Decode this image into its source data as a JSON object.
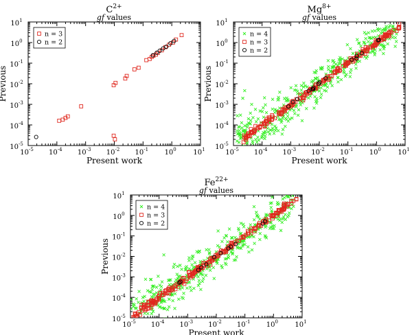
{
  "figure": {
    "description_labels": true
  },
  "chart_data": [
    {
      "type": "scatter",
      "id": "c2",
      "title_element": "C",
      "title_charge": "2+",
      "subtitle_italic": "gf",
      "subtitle_rest": " values",
      "xlabel": "Present work",
      "ylabel": "Previous",
      "xscale": "log",
      "yscale": "log",
      "xlim": [
        1e-05,
        10
      ],
      "ylim": [
        1e-05,
        10
      ],
      "xticks": [
        "10",
        "10",
        "10",
        "10",
        "10",
        "10",
        "10"
      ],
      "xtick_exps": [
        "-5",
        "-4",
        "-3",
        "-2",
        "-1",
        "0",
        "1"
      ],
      "yticks": [
        "10",
        "10",
        "10",
        "10",
        "10",
        "10",
        "10"
      ],
      "ytick_exps": [
        "-5",
        "-4",
        "-3",
        "-2",
        "-1",
        "0",
        "1"
      ],
      "legend_position": "top-left",
      "series": [
        {
          "name": "n = 3",
          "marker": "square",
          "color": "#e0281e",
          "points": [
            [
              0.00012,
              0.00016
            ],
            [
              0.00016,
              0.00018
            ],
            [
              0.0002,
              0.00022
            ],
            [
              0.00024,
              0.00026
            ],
            [
              0.0007,
              0.0008
            ],
            [
              0.0095,
              0.0085
            ],
            [
              0.011,
              0.011
            ],
            [
              0.0095,
              3e-05
            ],
            [
              0.0105,
              2e-05
            ],
            [
              0.024,
              0.018
            ],
            [
              0.027,
              0.024
            ],
            [
              0.05,
              0.05
            ],
            [
              0.07,
              0.06
            ],
            [
              0.13,
              0.14
            ],
            [
              0.17,
              0.16
            ],
            [
              0.2,
              0.2
            ],
            [
              0.23,
              0.23
            ],
            [
              0.28,
              0.26
            ],
            [
              0.33,
              0.32
            ],
            [
              0.45,
              0.42
            ],
            [
              0.6,
              0.6
            ],
            [
              0.8,
              0.78
            ],
            [
              1.1,
              1.0
            ],
            [
              1.4,
              1.4
            ],
            [
              2.2,
              2.3
            ]
          ]
        },
        {
          "name": "n = 2",
          "marker": "circle",
          "color": "#000000",
          "points": [
            [
              1.9e-05,
              2.6e-05
            ],
            [
              0.22,
              0.24
            ],
            [
              0.3,
              0.32
            ],
            [
              0.38,
              0.4
            ],
            [
              0.5,
              0.52
            ],
            [
              0.65,
              0.63
            ],
            [
              0.9,
              0.92
            ],
            [
              1.2,
              1.2
            ]
          ]
        }
      ]
    },
    {
      "type": "scatter",
      "id": "mg8",
      "title_element": "Mg",
      "title_charge": "8+",
      "subtitle_italic": "gf",
      "subtitle_rest": " values",
      "xlabel": "Present work",
      "ylabel": "Previous",
      "xscale": "log",
      "yscale": "log",
      "xlim": [
        1e-05,
        10
      ],
      "ylim": [
        1e-05,
        10
      ],
      "xticks": [
        "10",
        "10",
        "10",
        "10",
        "10",
        "10",
        "10"
      ],
      "xtick_exps": [
        "-5",
        "-4",
        "-3",
        "-2",
        "-1",
        "0",
        "1"
      ],
      "yticks": [
        "10",
        "10",
        "10",
        "10",
        "10",
        "10",
        "10"
      ],
      "ytick_exps": [
        "-5",
        "-4",
        "-3",
        "-2",
        "-1",
        "0",
        "1"
      ],
      "legend_position": "top-left",
      "series": [
        {
          "name": "n = 4",
          "marker": "x",
          "color": "#33ee22",
          "generated": {
            "count": 420,
            "range_log": [
              -5,
              0.7
            ],
            "scatter": 0.42,
            "seed": 11
          }
        },
        {
          "name": "n = 3",
          "marker": "square",
          "color": "#e0281e",
          "generated": {
            "count": 230,
            "range_log": [
              -4.7,
              0.8
            ],
            "scatter": 0.06,
            "seed": 23
          }
        },
        {
          "name": "n = 2",
          "marker": "circle",
          "color": "#000000",
          "generated": {
            "count": 16,
            "range_log": [
              -3.2,
              0.1
            ],
            "scatter": 0.04,
            "seed": 37
          }
        }
      ]
    },
    {
      "type": "scatter",
      "id": "fe22",
      "title_element": "Fe",
      "title_charge": "22+",
      "subtitle_italic": "gf",
      "subtitle_rest": " values",
      "xlabel": "Present work",
      "ylabel": "Previous",
      "xscale": "log",
      "yscale": "log",
      "xlim": [
        1e-05,
        10
      ],
      "ylim": [
        1e-05,
        10
      ],
      "xticks": [
        "10",
        "10",
        "10",
        "10",
        "10",
        "10",
        "10"
      ],
      "xtick_exps": [
        "-5",
        "-4",
        "-3",
        "-2",
        "-1",
        "0",
        "1"
      ],
      "yticks": [
        "10",
        "10",
        "10",
        "10",
        "10",
        "10",
        "10"
      ],
      "ytick_exps": [
        "-5",
        "-4",
        "-3",
        "-2",
        "-1",
        "0",
        "1"
      ],
      "legend_position": "top-left",
      "series": [
        {
          "name": "n = 4",
          "marker": "x",
          "color": "#33ee22",
          "generated": {
            "count": 420,
            "range_log": [
              -5,
              0.7
            ],
            "scatter": 0.4,
            "seed": 51
          }
        },
        {
          "name": "n = 3",
          "marker": "square",
          "color": "#e0281e",
          "generated": {
            "count": 230,
            "range_log": [
              -4.9,
              0.8
            ],
            "scatter": 0.07,
            "seed": 63
          }
        },
        {
          "name": "n = 2",
          "marker": "circle",
          "color": "#000000",
          "generated": {
            "count": 12,
            "range_log": [
              -3.5,
              -0.2
            ],
            "scatter": 0.04,
            "seed": 71
          }
        }
      ]
    }
  ]
}
